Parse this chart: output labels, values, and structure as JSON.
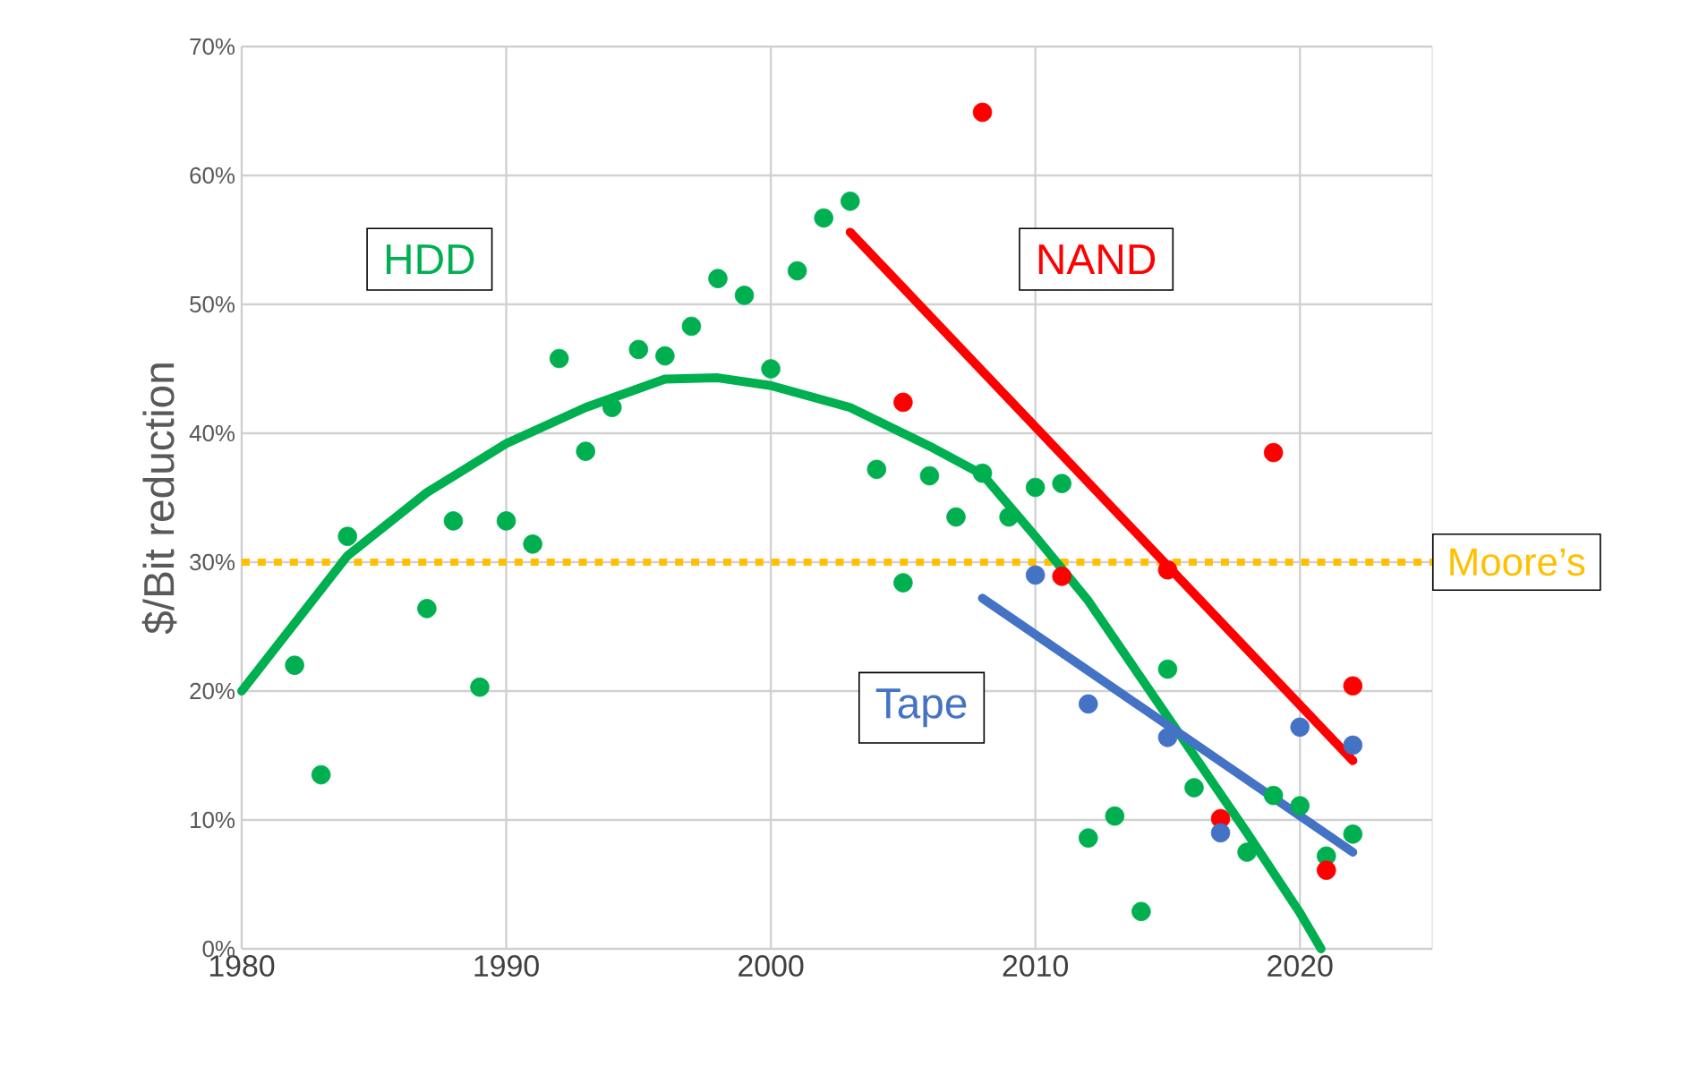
{
  "chart_data": {
    "type": "scatter",
    "ylabel": "$/Bit reduction",
    "xlim": [
      1980,
      2025
    ],
    "ylim": [
      0,
      70
    ],
    "xticks": [
      1980,
      1990,
      2000,
      2010,
      2020
    ],
    "yticks": [
      {
        "value": 0,
        "label": "0%"
      },
      {
        "value": 10,
        "label": "10%"
      },
      {
        "value": 20,
        "label": "20%"
      },
      {
        "value": 30,
        "label": "30%"
      },
      {
        "value": 40,
        "label": "40%"
      },
      {
        "value": 50,
        "label": "50%"
      },
      {
        "value": 60,
        "label": "60%"
      },
      {
        "value": 70,
        "label": "70%"
      }
    ],
    "grid": true,
    "marker": "circle",
    "series": [
      {
        "name": "HDD",
        "color": "#00b050",
        "x": [
          1982,
          1983,
          1984,
          1987,
          1988,
          1989,
          1990,
          1991,
          1992,
          1993,
          1994,
          1995,
          1996,
          1997,
          1998,
          1999,
          2000,
          2001,
          2002,
          2003,
          2004,
          2005,
          2006,
          2007,
          2008,
          2009,
          2010,
          2011,
          2012,
          2013,
          2014,
          2015,
          2016,
          2018,
          2019,
          2020,
          2021,
          2022
        ],
        "values": [
          22,
          13.5,
          32,
          26.4,
          33.2,
          20.3,
          33.2,
          31.4,
          45.8,
          38.6,
          42,
          46.5,
          46,
          48.3,
          52,
          50.7,
          45,
          52.6,
          56.7,
          58,
          37.2,
          28.4,
          36.7,
          33.5,
          36.9,
          33.5,
          35.8,
          36.1,
          8.6,
          10.3,
          2.9,
          21.7,
          12.5,
          7.5,
          11.9,
          11.1,
          7.2,
          8.9
        ]
      },
      {
        "type": "line",
        "marker": "none",
        "color": "#00b050",
        "x": [
          1980,
          1984,
          1987,
          1990,
          1993,
          1996,
          1998,
          2000,
          2003,
          2006,
          2008,
          2010,
          2012,
          2014,
          2016,
          2018,
          2020,
          2020.8
        ],
        "values": [
          20,
          30.5,
          35.4,
          39.2,
          42,
          44.2,
          44.3,
          43.7,
          42,
          39,
          36.8,
          32,
          27,
          21,
          15,
          9,
          2.8,
          0
        ]
      },
      {
        "name": "NAND",
        "color": "#ff0000",
        "x": [
          2005,
          2008,
          2011,
          2015,
          2017,
          2019,
          2021,
          2022
        ],
        "values": [
          42.4,
          64.9,
          28.9,
          29.4,
          10.1,
          38.5,
          6.1,
          20.4
        ]
      },
      {
        "type": "line",
        "marker": "none",
        "color": "#ff0000",
        "x": [
          2003,
          2022
        ],
        "values": [
          55.6,
          14.6
        ]
      },
      {
        "name": "Tape",
        "color": "#4472c4",
        "x": [
          2010,
          2012,
          2015,
          2017,
          2020,
          2022
        ],
        "values": [
          29,
          19,
          16.4,
          9,
          17.2,
          15.8
        ]
      },
      {
        "type": "line",
        "marker": "none",
        "color": "#4472c4",
        "x": [
          2008,
          2022
        ],
        "values": [
          27.2,
          7.5
        ]
      }
    ],
    "ref_lines": [
      {
        "axis": "y",
        "value": 30,
        "label": "Moore’s",
        "color": "#ffc000",
        "line_style": "dotted"
      }
    ]
  }
}
